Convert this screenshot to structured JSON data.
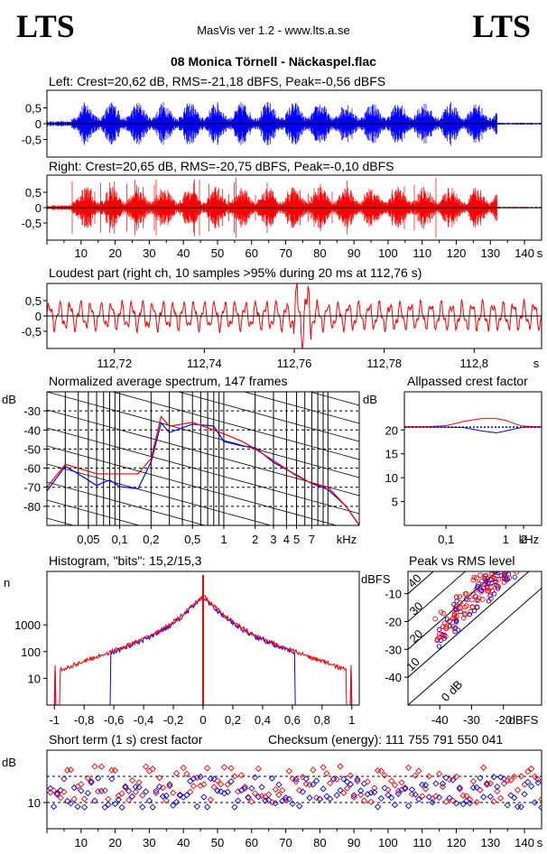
{
  "header": {
    "logo_left": "LTS",
    "logo_right": "LTS",
    "app": "MasVis ver 1.2 - www.lts.a.se",
    "file": "08 Monica Törnell - Näckaspel.flac"
  },
  "colors": {
    "left": "#0000ff",
    "right": "#ff0000",
    "grid": "#000000"
  },
  "chart_data": [
    {
      "id": "left-waveform",
      "type": "line",
      "title": "Left: Crest=20,62 dB, RMS=-21,18 dBFS, Peak=-0,56 dBFS",
      "y_ticks": [
        "0,5",
        "0",
        "-0,5"
      ],
      "ylim": [
        -1,
        1
      ],
      "crest_db": 20.62,
      "rms_dbfs": -21.18,
      "peak_dbfs": -0.56
    },
    {
      "id": "right-waveform",
      "type": "line",
      "title": "Right: Crest=20,65 dB, RMS=-20,75 dBFS, Peak=-0,10 dBFS",
      "y_ticks": [
        "0,5",
        "0",
        "-0,5"
      ],
      "ylim": [
        -1,
        1
      ],
      "x_ticks": [
        "10",
        "20",
        "30",
        "40",
        "50",
        "60",
        "70",
        "80",
        "90",
        "100",
        "110",
        "120",
        "130",
        "140"
      ],
      "x_unit": "s",
      "xlim": [
        0,
        145
      ],
      "crest_db": 20.65,
      "rms_dbfs": -20.75,
      "peak_dbfs": -0.1
    },
    {
      "id": "loudest-part",
      "type": "line",
      "title": "Loudest part (right ch, 10 samples >95% during 20 ms at 112,76 s)",
      "y_ticks": [
        "0,5",
        "0",
        "-0,5"
      ],
      "ylim": [
        -1,
        1
      ],
      "x_ticks": [
        "112,72",
        "112,74",
        "112,76",
        "112,78",
        "112,8"
      ],
      "x_unit": "s",
      "xlim": [
        112.705,
        112.815
      ]
    },
    {
      "id": "avg-spectrum",
      "type": "line",
      "title": "Normalized average spectrum, 147 frames",
      "ylabel": "dB",
      "y_ticks": [
        "-30",
        "-40",
        "-50",
        "-60",
        "-70",
        "-80"
      ],
      "ylim": [
        -90,
        -20
      ],
      "x_ticks": [
        "0,05",
        "0,1",
        "0,2",
        "0,5",
        "1",
        "2",
        "3",
        "4",
        "5",
        "7"
      ],
      "x_unit": "kHz",
      "x_scale": "log",
      "xlim": [
        0.02,
        20
      ],
      "x_khz": [
        0.02,
        0.03,
        0.04,
        0.06,
        0.08,
        0.1,
        0.15,
        0.2,
        0.25,
        0.3,
        0.5,
        0.8,
        1,
        1.5,
        2,
        3,
        5,
        7,
        10,
        15,
        20
      ],
      "series": [
        {
          "name": "Left",
          "values": [
            -72,
            -60,
            -62,
            -68,
            -65,
            -68,
            -72,
            -58,
            -35,
            -40,
            -36,
            -38,
            -45,
            -48,
            -50,
            -55,
            -63,
            -68,
            -70,
            -80,
            -90
          ]
        },
        {
          "name": "Right",
          "values": [
            -70,
            -58,
            -60,
            -63,
            -63,
            -63,
            -63,
            -55,
            -33,
            -38,
            -36,
            -40,
            -42,
            -46,
            -50,
            -56,
            -64,
            -68,
            -70,
            -80,
            -90
          ]
        }
      ]
    },
    {
      "id": "allpassed-crest",
      "type": "line",
      "title": "Allpassed crest factor",
      "ylabel": "dB",
      "y_ticks": [
        "20",
        "15",
        "10",
        "5"
      ],
      "ylim": [
        0,
        25
      ],
      "x_ticks": [
        "0,1",
        "1",
        "2"
      ],
      "x_unit": "kHz",
      "x_scale": "log",
      "xlim": [
        0.02,
        4
      ],
      "x_khz": [
        0.02,
        0.05,
        0.1,
        0.2,
        0.4,
        0.7,
        1,
        1.5,
        2,
        3,
        4
      ],
      "series": [
        {
          "name": "Left",
          "values": [
            20.6,
            20.6,
            20.6,
            20.5,
            19.8,
            19.4,
            19.8,
            20.3,
            20.6,
            20.6,
            20.6
          ]
        },
        {
          "name": "Right",
          "values": [
            20.7,
            20.7,
            20.9,
            21.8,
            22.4,
            22.4,
            22.0,
            21.2,
            20.8,
            20.7,
            20.7
          ]
        },
        {
          "name": "Reference",
          "values": [
            20.6,
            20.6,
            20.6,
            20.6,
            20.6,
            20.6,
            20.6,
            20.6,
            20.6,
            20.6,
            20.6
          ]
        }
      ]
    },
    {
      "id": "histogram",
      "type": "line",
      "title": "Histogram, \"bits\": 15,2/15,3",
      "ylabel": "n",
      "y_ticks": [
        "1000",
        "100",
        "10"
      ],
      "y_scale": "log",
      "ylim": [
        1,
        100000
      ],
      "x_ticks": [
        "-1",
        "-0,8",
        "-0,6",
        "-0,4",
        "-0,2",
        "0",
        "0,2",
        "0,4",
        "0,6",
        "0,8",
        "1"
      ],
      "xlim": [
        -1.05,
        1.05
      ],
      "bits_left": 15.2,
      "bits_right": 15.3
    },
    {
      "id": "peak-vs-rms",
      "type": "scatter",
      "title": "Peak vs RMS level",
      "ylabel": "dBFS",
      "y_ticks": [
        "-10",
        "-20",
        "-30",
        "-40"
      ],
      "ylim": [
        -50,
        -2
      ],
      "x_ticks": [
        "-40",
        "-30",
        "-20"
      ],
      "x_unit": "dBFS",
      "xlim": [
        -50,
        -8
      ],
      "diag_labels": [
        "40",
        "30",
        "20",
        "10",
        "0 dB"
      ]
    },
    {
      "id": "short-term-crest",
      "type": "scatter",
      "title": "Short term (1 s) crest factor",
      "ylabel": "dB",
      "y_ticks": [
        "10"
      ],
      "ylim": [
        0,
        30
      ],
      "x_ticks": [
        "10",
        "20",
        "30",
        "40",
        "50",
        "60",
        "70",
        "80",
        "90",
        "100",
        "110",
        "120",
        "130",
        "140"
      ],
      "x_unit": "s",
      "xlim": [
        0,
        145
      ]
    }
  ],
  "checksum": "Checksum (energy):  111 755 791 550 041"
}
